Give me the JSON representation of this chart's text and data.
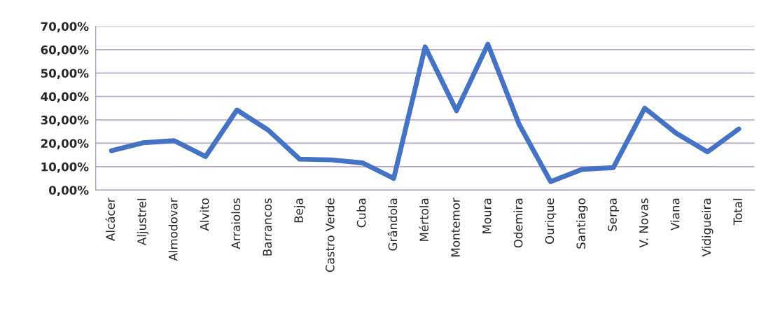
{
  "chart_data": {
    "type": "line",
    "categories": [
      "Alcácer",
      "Aljustrel",
      "Almodovar",
      "Alvito",
      "Arraiolos",
      "Barrancos",
      "Beja",
      "Castro Verde",
      "Cuba",
      "Grândola",
      "Mértola",
      "Montemor",
      "Moura",
      "Odemira",
      "Ourique",
      "Santiago",
      "Serpa",
      "V. Novas",
      "Viana",
      "Vidigueira",
      "Total"
    ],
    "series": [
      {
        "color": "#4472c4",
        "values": [
          16.8,
          20.2,
          21.1,
          14.3,
          34.2,
          25.6,
          13.2,
          12.9,
          11.6,
          5.0,
          61.2,
          33.9,
          62.3,
          28.0,
          3.6,
          8.8,
          9.6,
          35.0,
          24.3,
          16.3,
          26.1
        ]
      }
    ],
    "ylim": [
      0,
      70
    ],
    "yticks": [
      {
        "value": 0,
        "label": "0,00%"
      },
      {
        "value": 10,
        "label": "10,00%"
      },
      {
        "value": 20,
        "label": "20,00%"
      },
      {
        "value": 30,
        "label": "30,00%"
      },
      {
        "value": 40,
        "label": "40,00%"
      },
      {
        "value": 50,
        "label": "50,00%"
      },
      {
        "value": 60,
        "label": "60,00%"
      },
      {
        "value": 70,
        "label": "70,00%"
      }
    ],
    "grid": "y",
    "marker": "none",
    "line_style": "solid"
  }
}
